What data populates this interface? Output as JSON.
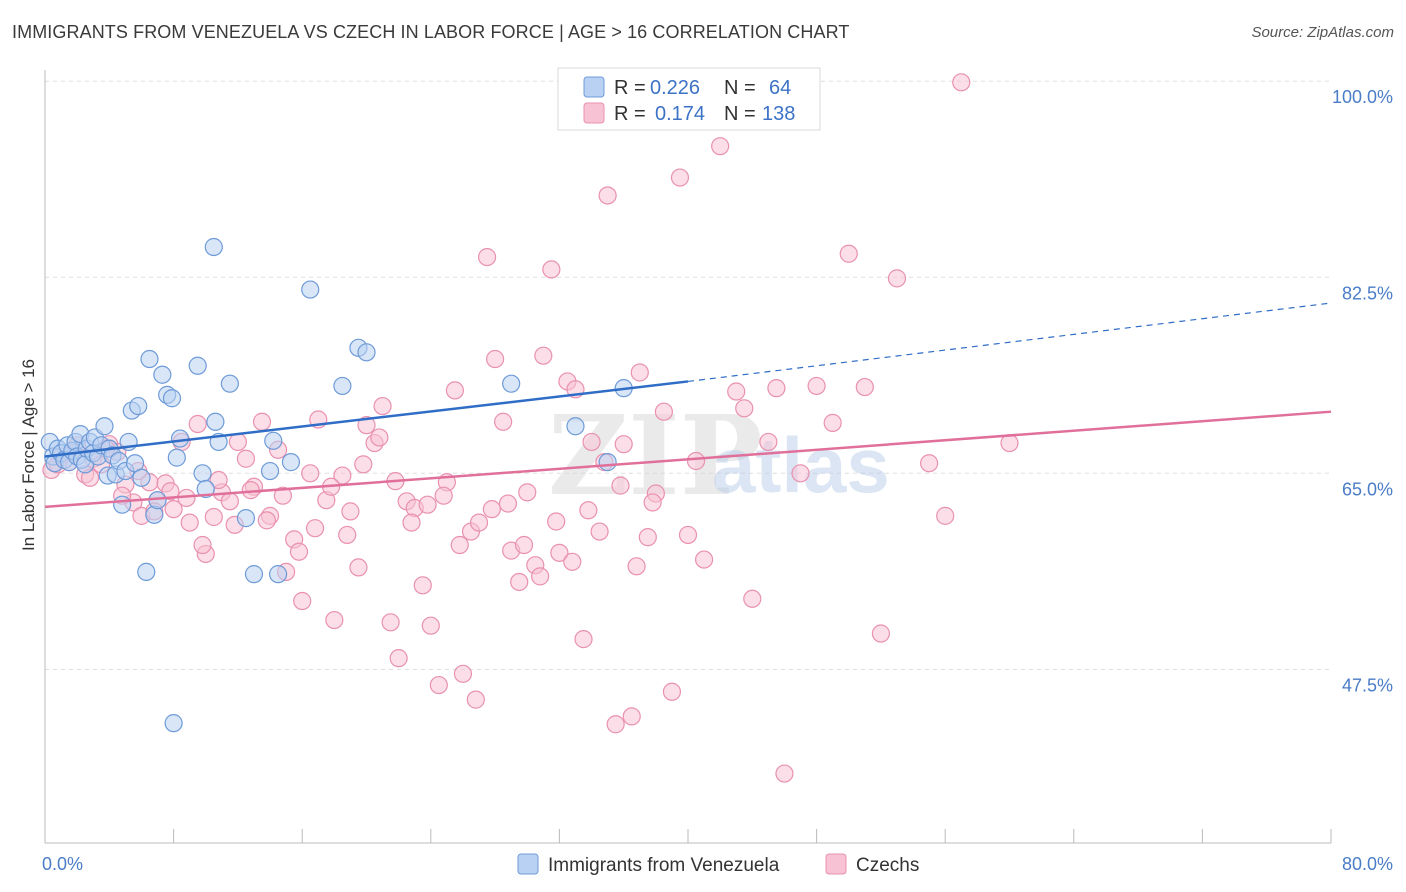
{
  "title": "IMMIGRANTS FROM VENEZUELA VS CZECH IN LABOR FORCE | AGE > 16 CORRELATION CHART",
  "source": "Source: ZipAtlas.com",
  "watermark": {
    "zip": "ZIP",
    "atlas": "atlas"
  },
  "colors": {
    "blue_fill": "#b9d1f2",
    "blue_stroke": "#6e9bd8",
    "blue_line": "#2f6dc6",
    "pink_fill": "#f7c3d4",
    "pink_stroke": "#e991b0",
    "pink_line": "#e0709a",
    "tick_text": "#4a7cc7",
    "grid": "#dddddd"
  },
  "legend": {
    "rows": [
      {
        "r_label": "R =",
        "r_value": "0.226",
        "n_label": "N =",
        "n_value": "64",
        "series": "blue"
      },
      {
        "r_label": "R =",
        "r_value": "0.174",
        "n_label": "N =",
        "n_value": "138",
        "series": "pink"
      }
    ]
  },
  "chart_data": {
    "type": "scatter",
    "title": "IMMIGRANTS FROM VENEZUELA VS CZECH IN LABOR FORCE | AGE > 16 CORRELATION CHART",
    "xlabel": "",
    "ylabel": "In Labor Force | Age > 16",
    "xlim": [
      0,
      80
    ],
    "ylim": [
      32,
      101
    ],
    "x_tick_labels": [
      "0.0%",
      "80.0%"
    ],
    "y_ticks": [
      47.5,
      65.0,
      82.5,
      100.0
    ],
    "y_tick_labels": [
      "47.5%",
      "65.0%",
      "82.5%",
      "100.0%"
    ],
    "grid": true,
    "legend_position": "top-center",
    "series": [
      {
        "name": "Immigrants from Venezuela",
        "color": "blue",
        "trend": {
          "x0": 0,
          "y0": 66.5,
          "x1": 40,
          "y1": 73.2,
          "dash_to_x": 80,
          "dash_to_y": 80.2
        },
        "points": [
          [
            0.3,
            67.8
          ],
          [
            0.5,
            66.5
          ],
          [
            0.6,
            65.9
          ],
          [
            0.8,
            67.2
          ],
          [
            1.0,
            66.8
          ],
          [
            1.2,
            66.2
          ],
          [
            1.4,
            67.5
          ],
          [
            1.5,
            66.0
          ],
          [
            1.7,
            67.0
          ],
          [
            1.9,
            67.8
          ],
          [
            2.0,
            66.5
          ],
          [
            2.2,
            68.5
          ],
          [
            2.3,
            66.2
          ],
          [
            2.5,
            65.8
          ],
          [
            2.6,
            67.2
          ],
          [
            2.8,
            67.8
          ],
          [
            3.0,
            66.8
          ],
          [
            3.1,
            68.2
          ],
          [
            3.3,
            66.5
          ],
          [
            3.5,
            67.5
          ],
          [
            3.7,
            69.2
          ],
          [
            3.9,
            64.8
          ],
          [
            4.0,
            67.2
          ],
          [
            4.2,
            66.6
          ],
          [
            4.4,
            64.9
          ],
          [
            4.6,
            66.1
          ],
          [
            4.8,
            62.2
          ],
          [
            5.0,
            65.2
          ],
          [
            5.2,
            67.8
          ],
          [
            5.4,
            70.6
          ],
          [
            5.6,
            65.9
          ],
          [
            5.8,
            71.0
          ],
          [
            6.0,
            64.6
          ],
          [
            6.3,
            56.2
          ],
          [
            6.5,
            75.2
          ],
          [
            6.8,
            61.3
          ],
          [
            7.0,
            62.6
          ],
          [
            7.3,
            73.8
          ],
          [
            7.6,
            72.0
          ],
          [
            7.9,
            71.7
          ],
          [
            8.2,
            66.4
          ],
          [
            8.4,
            68.1
          ],
          [
            8.0,
            42.7
          ],
          [
            9.5,
            74.6
          ],
          [
            9.8,
            65.0
          ],
          [
            10.0,
            63.6
          ],
          [
            10.5,
            85.2
          ],
          [
            10.6,
            69.6
          ],
          [
            10.8,
            67.8
          ],
          [
            11.5,
            73.0
          ],
          [
            12.5,
            61.0
          ],
          [
            13.0,
            56.0
          ],
          [
            14.0,
            65.2
          ],
          [
            14.2,
            67.9
          ],
          [
            14.5,
            56.0
          ],
          [
            15.3,
            66.0
          ],
          [
            16.5,
            81.4
          ],
          [
            18.5,
            72.8
          ],
          [
            19.5,
            76.2
          ],
          [
            20.0,
            75.8
          ],
          [
            29.0,
            73.0
          ],
          [
            33.0,
            69.2
          ],
          [
            35.0,
            66.0
          ],
          [
            36.0,
            72.6
          ]
        ]
      },
      {
        "name": "Czechs",
        "color": "pink",
        "trend": {
          "x0": 0,
          "y0": 62.0,
          "x1": 80,
          "y1": 70.5
        },
        "points": [
          [
            0.4,
            65.3
          ],
          [
            1.0,
            66.5
          ],
          [
            1.5,
            66.0
          ],
          [
            2.0,
            67.5
          ],
          [
            2.5,
            64.9
          ],
          [
            3.0,
            66.3
          ],
          [
            3.5,
            65.8
          ],
          [
            4.0,
            67.6
          ],
          [
            4.5,
            66.9
          ],
          [
            5.0,
            64.0
          ],
          [
            5.5,
            62.4
          ],
          [
            6.0,
            61.2
          ],
          [
            6.5,
            64.2
          ],
          [
            7.0,
            62.6
          ],
          [
            7.5,
            64.1
          ],
          [
            8.0,
            61.8
          ],
          [
            8.5,
            67.8
          ],
          [
            9.0,
            60.6
          ],
          [
            9.5,
            69.4
          ],
          [
            10.0,
            57.8
          ],
          [
            10.5,
            61.1
          ],
          [
            11.0,
            63.3
          ],
          [
            11.5,
            62.5
          ],
          [
            12.0,
            67.8
          ],
          [
            12.5,
            66.3
          ],
          [
            13.0,
            63.8
          ],
          [
            13.5,
            69.6
          ],
          [
            14.0,
            61.2
          ],
          [
            14.5,
            67.1
          ],
          [
            15.0,
            56.2
          ],
          [
            15.5,
            59.1
          ],
          [
            16.0,
            53.6
          ],
          [
            16.5,
            65.0
          ],
          [
            17.0,
            69.8
          ],
          [
            17.5,
            62.6
          ],
          [
            18.0,
            51.9
          ],
          [
            18.5,
            64.8
          ],
          [
            19.0,
            61.6
          ],
          [
            19.5,
            56.6
          ],
          [
            20.0,
            69.3
          ],
          [
            20.5,
            67.7
          ],
          [
            21.0,
            71.0
          ],
          [
            21.5,
            51.7
          ],
          [
            22.0,
            48.5
          ],
          [
            22.5,
            62.5
          ],
          [
            23.0,
            61.9
          ],
          [
            23.5,
            55.0
          ],
          [
            24.0,
            51.4
          ],
          [
            24.5,
            46.1
          ],
          [
            25.0,
            64.2
          ],
          [
            25.5,
            72.4
          ],
          [
            26.0,
            47.1
          ],
          [
            26.5,
            59.8
          ],
          [
            27.0,
            60.6
          ],
          [
            27.5,
            84.3
          ],
          [
            28.0,
            75.2
          ],
          [
            28.5,
            69.6
          ],
          [
            29.0,
            58.1
          ],
          [
            29.5,
            55.3
          ],
          [
            30.0,
            63.3
          ],
          [
            30.5,
            56.8
          ],
          [
            31.0,
            75.5
          ],
          [
            31.5,
            83.2
          ],
          [
            32.0,
            57.9
          ],
          [
            32.5,
            73.2
          ],
          [
            33.0,
            72.5
          ],
          [
            33.5,
            50.2
          ],
          [
            34.0,
            67.8
          ],
          [
            34.5,
            59.8
          ],
          [
            35.0,
            89.8
          ],
          [
            35.5,
            42.6
          ],
          [
            36.0,
            67.6
          ],
          [
            36.5,
            43.3
          ],
          [
            37.0,
            74.0
          ],
          [
            37.5,
            59.3
          ],
          [
            38.0,
            63.2
          ],
          [
            38.5,
            70.5
          ],
          [
            39.0,
            45.5
          ],
          [
            39.5,
            91.4
          ],
          [
            40.0,
            59.5
          ],
          [
            40.5,
            66.1
          ],
          [
            41.0,
            57.3
          ],
          [
            42.0,
            94.2
          ],
          [
            43.0,
            72.3
          ],
          [
            43.5,
            70.8
          ],
          [
            44.0,
            53.8
          ],
          [
            45.0,
            67.8
          ],
          [
            45.5,
            72.6
          ],
          [
            46.0,
            38.2
          ],
          [
            47.0,
            65.0
          ],
          [
            48.0,
            72.8
          ],
          [
            49.0,
            69.5
          ],
          [
            50.0,
            84.6
          ],
          [
            51.0,
            72.7
          ],
          [
            52.0,
            50.7
          ],
          [
            53.0,
            82.4
          ],
          [
            55.0,
            65.9
          ],
          [
            56.0,
            61.2
          ],
          [
            57.0,
            99.9
          ],
          [
            60.0,
            67.7
          ],
          [
            0.8,
            65.8
          ],
          [
            1.8,
            66.8
          ],
          [
            2.8,
            64.6
          ],
          [
            3.8,
            67.2
          ],
          [
            4.8,
            63.0
          ],
          [
            5.8,
            65.2
          ],
          [
            6.8,
            61.6
          ],
          [
            7.8,
            63.4
          ],
          [
            8.8,
            62.8
          ],
          [
            9.8,
            58.6
          ],
          [
            10.8,
            64.4
          ],
          [
            11.8,
            60.4
          ],
          [
            12.8,
            63.5
          ],
          [
            13.8,
            60.8
          ],
          [
            14.8,
            63.0
          ],
          [
            15.8,
            58.0
          ],
          [
            16.8,
            60.1
          ],
          [
            17.8,
            63.8
          ],
          [
            18.8,
            59.5
          ],
          [
            19.8,
            65.8
          ],
          [
            20.8,
            68.2
          ],
          [
            21.8,
            64.3
          ],
          [
            22.8,
            60.6
          ],
          [
            23.8,
            62.2
          ],
          [
            24.8,
            63.0
          ],
          [
            25.8,
            58.6
          ],
          [
            26.8,
            44.8
          ],
          [
            27.8,
            61.8
          ],
          [
            28.8,
            62.3
          ],
          [
            29.8,
            58.6
          ],
          [
            30.8,
            55.8
          ],
          [
            31.8,
            60.7
          ],
          [
            32.8,
            57.1
          ],
          [
            33.8,
            61.7
          ],
          [
            34.8,
            66.0
          ],
          [
            35.8,
            63.9
          ],
          [
            36.8,
            56.7
          ],
          [
            37.8,
            62.4
          ]
        ]
      }
    ]
  },
  "bottom_legend": [
    {
      "label": "Immigrants from Venezuela",
      "series": "blue"
    },
    {
      "label": "Czechs",
      "series": "pink"
    }
  ]
}
